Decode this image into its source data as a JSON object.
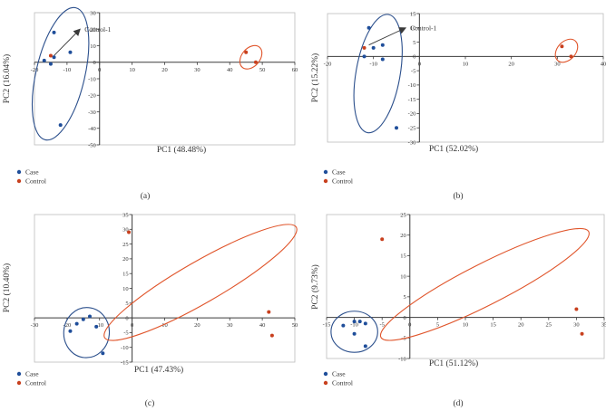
{
  "colors": {
    "case": "#1f4e9a",
    "control": "#c8401e",
    "case_ellipse": "#2b4f8c",
    "control_ellipse": "#e0552b",
    "axis": "#3a3a3a",
    "text": "#333333"
  },
  "chart_data": [
    {
      "type": "scatter",
      "panel_label": "(a)",
      "xlabel": "PC1 (48.48%)",
      "ylabel": "PC2 (16.04%)",
      "xlim": [
        -20,
        60
      ],
      "ylim": [
        -50,
        30
      ],
      "xticks": [
        -20,
        -10,
        0,
        10,
        20,
        30,
        40,
        50,
        60
      ],
      "yticks": [
        -50,
        -40,
        -30,
        -20,
        -10,
        0,
        10,
        20,
        30
      ],
      "x_tick_labels": [
        "-20",
        "-10",
        "0",
        "10",
        "20",
        "30",
        "40",
        "50",
        "60"
      ],
      "y_tick_labels": [
        "-50",
        "-40",
        "-30",
        "-20",
        "-10",
        "0",
        "10",
        "20",
        "30"
      ],
      "legend": [
        "Case",
        "Control"
      ],
      "annotation": {
        "text": "Control-1",
        "from": [
          -14,
          4
        ],
        "to": [
          -6,
          20
        ]
      },
      "series": [
        {
          "name": "Case",
          "points": [
            [
              -14,
              18
            ],
            [
              -9,
              6
            ],
            [
              -17,
              1
            ],
            [
              -14,
              3
            ],
            [
              -15,
              -1
            ],
            [
              -12,
              -38
            ]
          ]
        },
        {
          "name": "Control",
          "points": [
            [
              -15,
              4
            ],
            [
              45,
              6
            ],
            [
              48,
              0
            ]
          ]
        }
      ],
      "ellipses": [
        {
          "group": "Case",
          "cx": -12,
          "cy": -7,
          "rx": 7.5,
          "ry": 41,
          "angle": 13
        },
        {
          "group": "Control",
          "cx": 46.5,
          "cy": 3,
          "rx": 2.8,
          "ry": 8,
          "angle": 40
        }
      ]
    },
    {
      "type": "scatter",
      "panel_label": "(b)",
      "xlabel": "PC1 (52.02%)",
      "ylabel": "PC2 (15.22%)",
      "xlim": [
        -20,
        40
      ],
      "ylim": [
        -30,
        15
      ],
      "xticks": [
        -20,
        -10,
        0,
        10,
        20,
        30,
        40
      ],
      "yticks": [
        -30,
        -25,
        -20,
        -15,
        -10,
        -5,
        0,
        5,
        10,
        15
      ],
      "x_tick_labels": [
        "-20",
        "-10",
        "0",
        "10",
        "20",
        "30",
        "40"
      ],
      "y_tick_labels": [
        "-30",
        "-25",
        "-20",
        "-15",
        "-10",
        "-5",
        "0",
        "5",
        "10",
        "15"
      ],
      "legend": [
        "Case",
        "Control"
      ],
      "annotation": {
        "text": "Control-1",
        "from": [
          -11,
          4
        ],
        "to": [
          -3,
          10
        ]
      },
      "series": [
        {
          "name": "Case",
          "points": [
            [
              -11,
              10
            ],
            [
              -10,
              3
            ],
            [
              -8,
              4
            ],
            [
              -12,
              0
            ],
            [
              -8,
              -1
            ],
            [
              -5,
              -25
            ]
          ]
        },
        {
          "name": "Control",
          "points": [
            [
              -12,
              3
            ],
            [
              31,
              3.5
            ],
            [
              33,
              0
            ]
          ]
        }
      ],
      "ellipses": [
        {
          "group": "Case",
          "cx": -9,
          "cy": -6,
          "rx": 4.8,
          "ry": 21,
          "angle": 10
        },
        {
          "group": "Control",
          "cx": 32,
          "cy": 2,
          "rx": 2,
          "ry": 4.6,
          "angle": 42
        }
      ]
    },
    {
      "type": "scatter",
      "panel_label": "(c)",
      "xlabel": "PC1 (47.43%)",
      "ylabel": "PC2 (10.40%)",
      "xlim": [
        -30,
        50
      ],
      "ylim": [
        -15,
        35
      ],
      "xticks": [
        -30,
        -20,
        -10,
        0,
        10,
        20,
        30,
        40,
        50
      ],
      "yticks": [
        -15,
        -10,
        -5,
        0,
        5,
        10,
        15,
        20,
        25,
        30,
        35
      ],
      "x_tick_labels": [
        "-30",
        "-20",
        "-10",
        "0",
        "10",
        "20",
        "30",
        "40",
        "50"
      ],
      "y_tick_labels": [
        "-15",
        "-10",
        "-5",
        "0",
        "5",
        "10",
        "15",
        "20",
        "25",
        "30",
        "35"
      ],
      "legend": [
        "Case",
        "Control"
      ],
      "series": [
        {
          "name": "Case",
          "points": [
            [
              -15,
              -0.5
            ],
            [
              -13,
              0.5
            ],
            [
              -17,
              -2
            ],
            [
              -11,
              -3
            ],
            [
              -19,
              -4.5
            ],
            [
              -9,
              -12
            ]
          ]
        },
        {
          "name": "Control",
          "points": [
            [
              -1,
              29
            ],
            [
              42,
              2
            ],
            [
              43,
              -6
            ]
          ]
        }
      ],
      "ellipses": [
        {
          "group": "Case",
          "cx": -14,
          "cy": -5,
          "rx": 7,
          "ry": 8.5,
          "angle": 5
        },
        {
          "group": "Control",
          "cx": 21,
          "cy": 12,
          "rx": 34,
          "ry": 7,
          "angle": -30
        }
      ]
    },
    {
      "type": "scatter",
      "panel_label": "(d)",
      "xlabel": "PC1 (51.12%)",
      "ylabel": "PC2 (9.73%)",
      "xlim": [
        -15,
        35
      ],
      "ylim": [
        -10,
        25
      ],
      "xticks": [
        -15,
        -10,
        -5,
        0,
        5,
        10,
        15,
        20,
        25,
        30,
        35
      ],
      "yticks": [
        -10,
        -5,
        0,
        5,
        10,
        15,
        20,
        25
      ],
      "x_tick_labels": [
        "-15",
        "-10",
        "-5",
        "0",
        "5",
        "10",
        "15",
        "20",
        "25",
        "30",
        "35"
      ],
      "y_tick_labels": [
        "-10",
        "-5",
        "0",
        "5",
        "10",
        "15",
        "20",
        "25"
      ],
      "legend": [
        "Case",
        "Control"
      ],
      "series": [
        {
          "name": "Case",
          "points": [
            [
              -10,
              -1
            ],
            [
              -9,
              -1
            ],
            [
              -12,
              -2
            ],
            [
              -8,
              -1.5
            ],
            [
              -10,
              -4
            ],
            [
              -8,
              -7
            ]
          ]
        },
        {
          "name": "Control",
          "points": [
            [
              -5,
              19
            ],
            [
              30,
              2
            ],
            [
              31,
              -4
            ]
          ]
        }
      ],
      "ellipses": [
        {
          "group": "Case",
          "cx": -10,
          "cy": -3.5,
          "rx": 4.2,
          "ry": 5,
          "angle": 0
        },
        {
          "group": "Control",
          "cx": 13.5,
          "cy": 8,
          "rx": 21,
          "ry": 5,
          "angle": -27
        }
      ]
    }
  ]
}
